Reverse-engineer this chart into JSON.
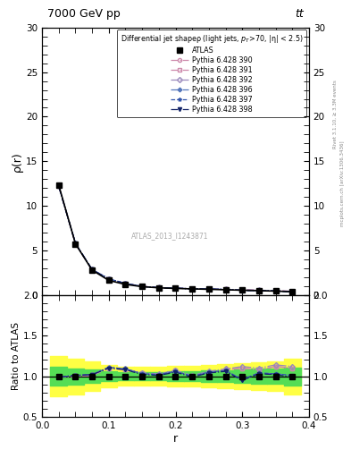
{
  "title_left": "7000 GeV pp",
  "title_right": "tt",
  "ylabel_main": "ρ(r)",
  "ylabel_ratio": "Ratio to ATLAS",
  "xlabel": "r",
  "annotation": "ATLAS_2013_I1243871",
  "right_label_top": "Rivet 3.1.10, ≥ 3.3M events",
  "right_label_bottom": "mcplots.cern.ch [arXiv:1306.3436]",
  "legend_title": "Differential jet shapeρ (light jets, p_{T}>70, |η| < 2.5)",
  "atlas_label": "ATLAS",
  "main_ylim": [
    0,
    30
  ],
  "ratio_ylim": [
    0.5,
    2.0
  ],
  "xlim": [
    0,
    0.4
  ],
  "r_values": [
    0.025,
    0.05,
    0.075,
    0.1,
    0.125,
    0.15,
    0.175,
    0.2,
    0.225,
    0.25,
    0.275,
    0.3,
    0.325,
    0.35,
    0.375
  ],
  "atlas_data": [
    12.3,
    5.75,
    2.8,
    1.65,
    1.2,
    0.95,
    0.82,
    0.75,
    0.7,
    0.65,
    0.6,
    0.55,
    0.5,
    0.45,
    0.38
  ],
  "series": [
    {
      "label": "Pythia 6.428 390",
      "color": "#cc88aa",
      "marker": "o",
      "linestyle": "-.",
      "ratio": [
        0.99,
        1.0,
        1.01,
        1.1,
        1.08,
        1.04,
        1.02,
        1.07,
        1.0,
        1.05,
        1.08,
        1.1,
        1.08,
        1.12,
        1.1
      ]
    },
    {
      "label": "Pythia 6.428 391",
      "color": "#cc88aa",
      "marker": "s",
      "linestyle": "-.",
      "ratio": [
        0.99,
        1.0,
        1.01,
        1.1,
        1.08,
        1.04,
        1.02,
        1.07,
        1.0,
        1.05,
        1.08,
        1.1,
        1.08,
        1.12,
        1.1
      ]
    },
    {
      "label": "Pythia 6.428 392",
      "color": "#9988bb",
      "marker": "D",
      "linestyle": "-.",
      "ratio": [
        0.99,
        1.01,
        1.02,
        1.11,
        1.09,
        1.04,
        1.03,
        1.07,
        1.01,
        1.06,
        1.09,
        1.12,
        1.1,
        1.14,
        1.12
      ]
    },
    {
      "label": "Pythia 6.428 396",
      "color": "#5577bb",
      "marker": "P",
      "linestyle": "-.",
      "ratio": [
        0.99,
        1.01,
        1.02,
        1.11,
        1.09,
        1.03,
        1.02,
        1.06,
        1.0,
        1.05,
        1.07,
        0.96,
        1.04,
        1.03,
        1.01
      ]
    },
    {
      "label": "Pythia 6.428 397",
      "color": "#3355aa",
      "marker": "*",
      "linestyle": "--",
      "ratio": [
        0.99,
        1.01,
        1.02,
        1.11,
        1.09,
        1.03,
        1.02,
        1.06,
        1.0,
        1.05,
        1.07,
        0.96,
        1.04,
        1.03,
        1.01
      ]
    },
    {
      "label": "Pythia 6.428 398",
      "color": "#112266",
      "marker": "v",
      "linestyle": "-.",
      "ratio": [
        0.99,
        1.01,
        1.02,
        1.1,
        1.08,
        1.02,
        1.01,
        1.05,
        0.99,
        1.04,
        1.06,
        0.95,
        1.03,
        1.02,
        0.99
      ]
    }
  ],
  "yellow_band_lo": [
    0.75,
    0.78,
    0.82,
    0.86,
    0.88,
    0.88,
    0.88,
    0.87,
    0.87,
    0.86,
    0.85,
    0.84,
    0.83,
    0.82,
    0.78
  ],
  "yellow_band_hi": [
    1.25,
    1.22,
    1.18,
    1.14,
    1.12,
    1.12,
    1.12,
    1.13,
    1.13,
    1.14,
    1.15,
    1.16,
    1.17,
    1.18,
    1.22
  ],
  "green_band_lo": [
    0.88,
    0.9,
    0.92,
    0.94,
    0.95,
    0.95,
    0.95,
    0.94,
    0.94,
    0.93,
    0.93,
    0.92,
    0.91,
    0.91,
    0.89
  ],
  "green_band_hi": [
    1.12,
    1.1,
    1.08,
    1.06,
    1.05,
    1.05,
    1.05,
    1.06,
    1.06,
    1.07,
    1.07,
    1.08,
    1.09,
    1.09,
    1.11
  ]
}
